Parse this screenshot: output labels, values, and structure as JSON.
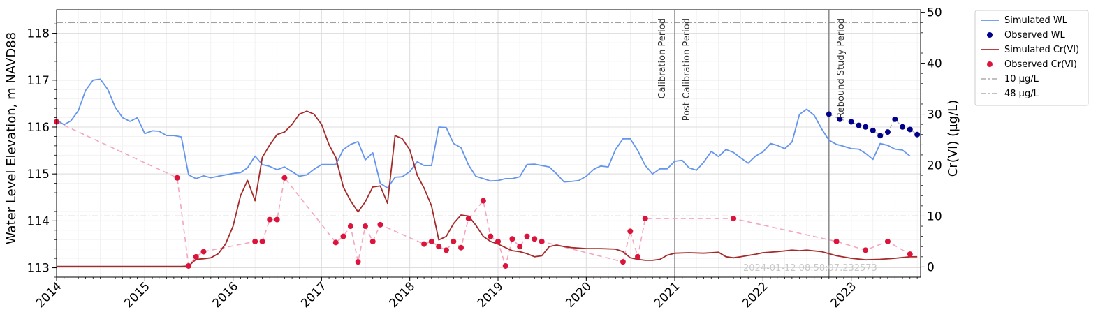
{
  "chart_data": {
    "type": "line",
    "title": "",
    "xlabel": "",
    "ylabel_left": "Water Level Elevation, m NAVD88",
    "ylabel_right": "Cr(VI) (µg/L)",
    "x_range": [
      "2014-01-01",
      "2023-10-15"
    ],
    "ylim_left": [
      112.8,
      118.5
    ],
    "ylim_right": [
      -2,
      50.5
    ],
    "x_ticks": [
      "2014",
      "2015",
      "2016",
      "2017",
      "2018",
      "2019",
      "2020",
      "2021",
      "2022",
      "2023"
    ],
    "y_left_ticks": [
      "113",
      "114",
      "115",
      "116",
      "117",
      "118"
    ],
    "y_right_ticks": [
      "0",
      "10",
      "20",
      "30",
      "40",
      "50"
    ],
    "grid": true,
    "legend_position": "outside-top-right",
    "timestamp_text": "2024-01-12 08:58:07.232573",
    "colors": {
      "simulated_wl": "#6495ED",
      "observed_wl": "#00008B",
      "simulated_cr": "#A52A2A",
      "observed_cr": "#DC143C",
      "observed_cr_line": "#F4A6BE",
      "reference": "#808080",
      "period_line": "#808080"
    },
    "period_lines": [
      {
        "label": "Calibration Period",
        "date": "2021-01-01",
        "text_side": "left"
      },
      {
        "label": "Post-Calibration Period",
        "date": "2021-01-01",
        "text_side": "right"
      },
      {
        "label": "Rebound Study Period",
        "date": "2022-10-01",
        "text_side": "right"
      }
    ],
    "reference_lines": [
      {
        "name": "10 µg/L",
        "value": 10
      },
      {
        "name": "48 µg/L",
        "value": 48
      }
    ],
    "legend": [
      {
        "name": "Simulated WL",
        "kind": "line",
        "color": "#6495ED"
      },
      {
        "name": "Observed WL",
        "kind": "dot",
        "color": "#00008B"
      },
      {
        "name": "Simulated Cr(VI)",
        "kind": "line",
        "color": "#A52A2A"
      },
      {
        "name": "Observed Cr(VI)",
        "kind": "dot",
        "color": "#DC143C"
      },
      {
        "name": "10 µg/L",
        "kind": "dashdot",
        "color": "#808080"
      },
      {
        "name": "48 µg/L",
        "kind": "dashdot",
        "color": "#808080"
      }
    ],
    "series": [
      {
        "name": "Simulated WL",
        "axis": "left",
        "x": [
          "2014-01-01",
          "2014-02-01",
          "2014-03-01",
          "2014-04-01",
          "2014-05-01",
          "2014-06-01",
          "2014-07-01",
          "2014-08-01",
          "2014-09-01",
          "2014-10-01",
          "2014-11-01",
          "2014-12-01",
          "2015-01-01",
          "2015-02-01",
          "2015-03-01",
          "2015-04-01",
          "2015-05-01",
          "2015-06-01",
          "2015-07-01",
          "2015-08-01",
          "2015-09-01",
          "2015-10-01",
          "2015-11-01",
          "2015-12-01",
          "2016-01-01",
          "2016-02-01",
          "2016-03-01",
          "2016-04-01",
          "2016-05-01",
          "2016-06-01",
          "2016-07-01",
          "2016-08-01",
          "2016-09-01",
          "2016-10-01",
          "2016-11-01",
          "2016-12-01",
          "2017-01-01",
          "2017-02-01",
          "2017-03-01",
          "2017-04-01",
          "2017-05-01",
          "2017-06-01",
          "2017-07-01",
          "2017-08-01",
          "2017-09-01",
          "2017-10-01",
          "2017-11-01",
          "2017-12-01",
          "2018-01-01",
          "2018-02-01",
          "2018-03-01",
          "2018-04-01",
          "2018-05-01",
          "2018-06-01",
          "2018-07-01",
          "2018-08-01",
          "2018-09-01",
          "2018-10-01",
          "2018-11-01",
          "2018-12-01",
          "2019-01-01",
          "2019-02-01",
          "2019-03-01",
          "2019-04-01",
          "2019-05-01",
          "2019-06-01",
          "2019-07-01",
          "2019-08-01",
          "2019-09-01",
          "2019-10-01",
          "2019-11-01",
          "2019-12-01",
          "2020-01-01",
          "2020-02-01",
          "2020-03-01",
          "2020-04-01",
          "2020-05-01",
          "2020-06-01",
          "2020-07-01",
          "2020-08-01",
          "2020-09-01",
          "2020-10-01",
          "2020-11-01",
          "2020-12-01",
          "2021-01-01",
          "2021-02-01",
          "2021-03-01",
          "2021-04-01",
          "2021-05-01",
          "2021-06-01",
          "2021-07-01",
          "2021-08-01",
          "2021-09-01",
          "2021-10-01",
          "2021-11-01",
          "2021-12-01",
          "2022-01-01",
          "2022-02-01",
          "2022-03-01",
          "2022-04-01",
          "2022-05-01",
          "2022-06-01",
          "2022-07-01",
          "2022-08-01",
          "2022-09-01",
          "2022-10-01",
          "2022-11-01",
          "2022-12-01",
          "2023-01-01",
          "2023-02-01",
          "2023-03-01",
          "2023-04-01",
          "2023-05-01",
          "2023-06-01",
          "2023-07-01",
          "2023-08-01",
          "2023-09-01"
        ],
        "y": [
          116.15,
          116.05,
          116.13,
          116.35,
          116.78,
          117.0,
          117.02,
          116.8,
          116.42,
          116.2,
          116.12,
          116.2,
          115.86,
          115.92,
          115.91,
          115.82,
          115.82,
          115.79,
          114.98,
          114.9,
          114.96,
          114.92,
          114.95,
          114.98,
          115.01,
          115.03,
          115.13,
          115.38,
          115.2,
          115.16,
          115.09,
          115.15,
          115.05,
          114.95,
          114.98,
          115.1,
          115.2,
          115.2,
          115.2,
          115.52,
          115.63,
          115.69,
          115.3,
          115.45,
          114.8,
          114.7,
          114.93,
          114.94,
          115.05,
          115.26,
          115.18,
          115.18,
          116.0,
          115.99,
          115.65,
          115.56,
          115.19,
          114.95,
          114.9,
          114.85,
          114.86,
          114.9,
          114.9,
          114.94,
          115.2,
          115.21,
          115.18,
          115.15,
          115.0,
          114.83,
          114.84,
          114.86,
          114.95,
          115.1,
          115.17,
          115.15,
          115.52,
          115.75,
          115.75,
          115.5,
          115.18,
          115.0,
          115.11,
          115.11,
          115.27,
          115.29,
          115.13,
          115.08,
          115.25,
          115.48,
          115.37,
          115.52,
          115.46,
          115.34,
          115.23,
          115.38,
          115.47,
          115.65,
          115.61,
          115.54,
          115.68,
          116.27,
          116.38,
          116.25,
          115.96,
          115.72,
          115.63,
          115.59,
          115.54,
          115.53,
          115.44,
          115.31,
          115.65,
          115.61,
          115.53,
          115.51,
          115.38
        ]
      },
      {
        "name": "Simulated Cr(VI)",
        "axis": "right",
        "x": [
          "2014-01-01",
          "2015-06-01",
          "2015-07-01",
          "2015-08-01",
          "2015-09-01",
          "2015-10-01",
          "2015-11-01",
          "2015-12-01",
          "2016-01-01",
          "2016-02-01",
          "2016-03-01",
          "2016-04-01",
          "2016-05-01",
          "2016-06-01",
          "2016-07-01",
          "2016-08-01",
          "2016-09-01",
          "2016-10-01",
          "2016-11-01",
          "2016-12-01",
          "2017-01-01",
          "2017-02-01",
          "2017-03-01",
          "2017-04-01",
          "2017-05-01",
          "2017-06-01",
          "2017-07-01",
          "2017-08-01",
          "2017-09-01",
          "2017-10-01",
          "2017-11-01",
          "2017-12-01",
          "2018-01-01",
          "2018-02-01",
          "2018-03-01",
          "2018-04-01",
          "2018-05-01",
          "2018-06-01",
          "2018-07-01",
          "2018-08-01",
          "2018-09-01",
          "2018-10-01",
          "2018-11-01",
          "2018-12-01",
          "2019-01-01",
          "2019-02-01",
          "2019-03-01",
          "2019-04-01",
          "2019-05-01",
          "2019-06-01",
          "2019-07-01",
          "2019-08-01",
          "2019-09-01",
          "2019-10-01",
          "2019-11-01",
          "2019-12-01",
          "2020-01-01",
          "2020-03-01",
          "2020-05-01",
          "2020-06-01",
          "2020-07-01",
          "2020-08-01",
          "2020-09-01",
          "2020-10-01",
          "2020-11-01",
          "2020-12-01",
          "2021-01-01",
          "2021-03-01",
          "2021-05-01",
          "2021-06-01",
          "2021-07-01",
          "2021-08-01",
          "2021-09-01",
          "2021-10-01",
          "2021-12-01",
          "2022-01-01",
          "2022-03-01",
          "2022-05-01",
          "2022-06-01",
          "2022-07-01",
          "2022-09-01",
          "2022-11-01",
          "2023-01-01",
          "2023-03-01",
          "2023-05-01",
          "2023-07-01",
          "2023-09-01",
          "2023-10-01"
        ],
        "y": [
          0.1,
          0.1,
          0.2,
          1.5,
          1.6,
          1.8,
          2.6,
          4.5,
          8.0,
          14.0,
          17.0,
          13.0,
          21.5,
          24.0,
          26.0,
          26.5,
          28.0,
          30.0,
          30.6,
          30.0,
          28.0,
          24.0,
          21.5,
          15.7,
          13.0,
          10.8,
          12.8,
          15.7,
          15.9,
          12.5,
          25.8,
          25.2,
          23.0,
          18.0,
          15.5,
          12.0,
          5.3,
          6.0,
          8.5,
          10.2,
          10.0,
          8.2,
          6.0,
          5.0,
          4.5,
          3.8,
          3.2,
          3.0,
          2.6,
          2.0,
          2.2,
          4.0,
          4.3,
          4.0,
          3.8,
          3.7,
          3.6,
          3.6,
          3.5,
          3.0,
          1.8,
          1.5,
          1.3,
          1.3,
          1.5,
          2.3,
          2.7,
          2.8,
          2.7,
          2.8,
          2.9,
          2.0,
          1.8,
          2.0,
          2.5,
          2.8,
          3.0,
          3.3,
          3.2,
          3.3,
          3.0,
          2.2,
          1.7,
          1.4,
          1.5,
          1.7,
          2.0,
          2.0
        ]
      },
      {
        "name": "Observed WL",
        "axis": "right",
        "x": [
          "2022-10-01",
          "2022-11-15",
          "2023-01-01",
          "2023-02-01",
          "2023-03-01",
          "2023-04-01",
          "2023-05-01",
          "2023-06-01",
          "2023-07-01",
          "2023-08-01",
          "2023-09-01",
          "2023-10-01"
        ],
        "y": [
          30.0,
          29.0,
          28.5,
          27.8,
          27.5,
          26.8,
          25.8,
          26.5,
          29.0,
          27.5,
          27.0,
          26.0
        ]
      },
      {
        "name": "Observed Cr(VI)",
        "axis": "right",
        "x": [
          "2014-01-01",
          "2015-05-15",
          "2015-07-01",
          "2015-08-01",
          "2015-09-01",
          "2016-04-01",
          "2016-05-01",
          "2016-06-01",
          "2016-07-01",
          "2016-08-01",
          "2017-03-01",
          "2017-04-01",
          "2017-05-01",
          "2017-06-01",
          "2017-07-01",
          "2017-08-01",
          "2017-09-01",
          "2018-03-01",
          "2018-04-01",
          "2018-05-01",
          "2018-06-01",
          "2018-07-01",
          "2018-08-01",
          "2018-09-01",
          "2018-11-01",
          "2018-12-01",
          "2019-01-01",
          "2019-02-01",
          "2019-03-01",
          "2019-04-01",
          "2019-05-01",
          "2019-06-01",
          "2019-07-01",
          "2020-06-01",
          "2020-07-01",
          "2020-08-01",
          "2020-09-01",
          "2021-09-01",
          "2022-11-01",
          "2023-03-01",
          "2023-06-01",
          "2023-09-01"
        ],
        "y": [
          28.5,
          17.5,
          0.2,
          2.0,
          3.0,
          5.0,
          5.0,
          9.3,
          9.3,
          17.5,
          4.8,
          6.0,
          8.0,
          1.0,
          8.0,
          5.0,
          8.3,
          4.5,
          5.0,
          4.0,
          3.3,
          5.0,
          3.8,
          9.5,
          13.0,
          6.0,
          5.0,
          0.2,
          5.5,
          4.0,
          6.0,
          5.5,
          5.0,
          1.0,
          7.0,
          2.0,
          9.5,
          9.5,
          5.0,
          3.3,
          5.0,
          2.5
        ]
      }
    ]
  }
}
